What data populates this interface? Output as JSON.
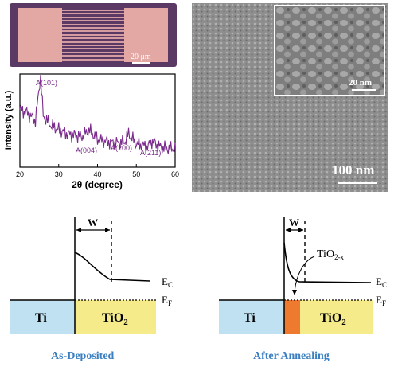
{
  "micrograph": {
    "scale_label": "20 μm"
  },
  "xrd": {
    "ylabel": "Intensity (a.u.)",
    "xlabel": "2θ (degree)",
    "x_ticks": [
      "20",
      "30",
      "40",
      "50",
      "60"
    ],
    "peaks": [
      "A(101)",
      "A(004)",
      "A(200)",
      "A(211)"
    ],
    "line_color": "#7a2b8c"
  },
  "chart_data": {
    "type": "line",
    "xlabel": "2θ (degree)",
    "ylabel": "Intensity (a.u.)",
    "xlim": [
      20,
      60
    ],
    "series": [
      {
        "x": [
          20,
          22,
          24,
          25,
          25.3,
          26,
          28,
          32,
          36,
          37.8,
          40,
          44,
          47,
          48,
          50,
          53,
          54,
          56,
          58,
          60
        ],
        "values": [
          0.62,
          0.58,
          0.5,
          0.86,
          0.99,
          0.55,
          0.45,
          0.36,
          0.33,
          0.4,
          0.3,
          0.26,
          0.27,
          0.36,
          0.25,
          0.22,
          0.28,
          0.22,
          0.2,
          0.2
        ]
      }
    ],
    "annotations": [
      "A(101)",
      "A(004)",
      "A(200)",
      "A(211)"
    ]
  },
  "sem": {
    "scale_main": "100 nm",
    "scale_inset": "20 nm"
  },
  "band_left": {
    "w_label": "W",
    "ec_label": "E",
    "ec_sub": "C",
    "ef_label": "E",
    "ef_sub": "F",
    "metal": "Ti",
    "oxide": "TiO",
    "oxide_sub": "2",
    "caption": "As-Deposited"
  },
  "band_right": {
    "w_label": "W",
    "ec_label": "E",
    "ec_sub": "C",
    "ef_label": "E",
    "ef_sub": "F",
    "metal": "Ti",
    "oxide": "TiO",
    "oxide_sub": "2",
    "interlayer": "TiO",
    "interlayer_sub": "2-x",
    "caption": "After Annealing"
  },
  "colors": {
    "metal": "#bfe1f2",
    "oxide": "#f5eb8b",
    "interlayer": "#ee7a2f",
    "caption": "#3a7fc1"
  }
}
